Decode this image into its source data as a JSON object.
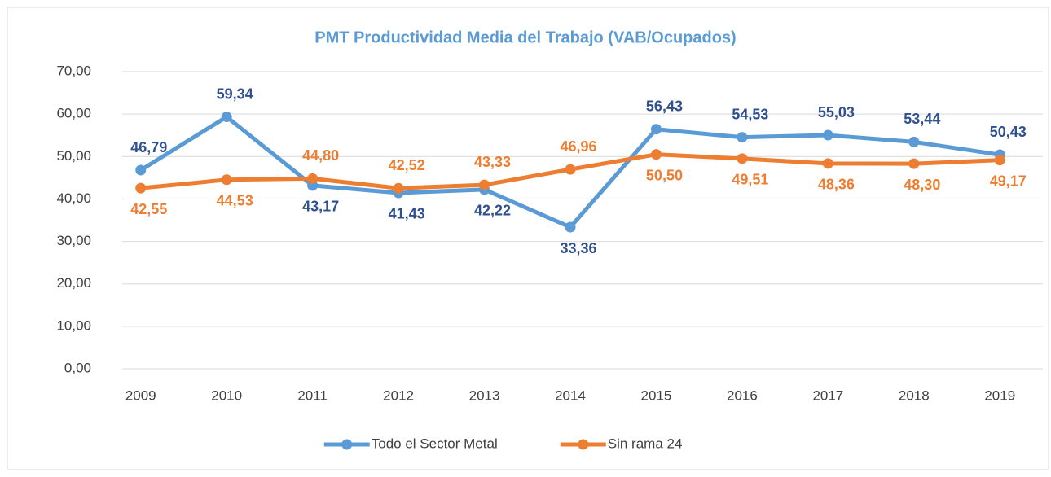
{
  "chart_data": {
    "type": "line",
    "title": "PMT Productividad Media del Trabajo (VAB/Ocupados)",
    "categories": [
      "2009",
      "2010",
      "2011",
      "2012",
      "2013",
      "2014",
      "2015",
      "2016",
      "2017",
      "2018",
      "2019"
    ],
    "series": [
      {
        "name": "Todo el Sector Metal",
        "color": "#5b9bd5",
        "label_color": "#2f4f8f",
        "values": [
          46.79,
          59.34,
          43.17,
          41.43,
          42.22,
          33.36,
          56.43,
          54.53,
          55.03,
          53.44,
          50.43
        ],
        "value_labels": [
          "46,79",
          "59,34",
          "43,17",
          "41,43",
          "42,22",
          "33,36",
          "56,43",
          "54,53",
          "55,03",
          "53,44",
          "50,43"
        ]
      },
      {
        "name": "Sin rama 24",
        "color": "#ed7d31",
        "label_color": "#ed7d31",
        "values": [
          42.55,
          44.53,
          44.8,
          42.52,
          43.33,
          46.96,
          50.5,
          49.51,
          48.36,
          48.3,
          49.17
        ],
        "value_labels": [
          "42,55",
          "44,53",
          "44,80",
          "42,52",
          "43,33",
          "46,96",
          "50,50",
          "49,51",
          "48,36",
          "48,30",
          "49,17"
        ]
      }
    ],
    "ylim": [
      0,
      70
    ],
    "yticks": [
      {
        "value": 0,
        "label": "0,00"
      },
      {
        "value": 10,
        "label": "10,00"
      },
      {
        "value": 20,
        "label": "20,00"
      },
      {
        "value": 30,
        "label": "30,00"
      },
      {
        "value": 40,
        "label": "40,00"
      },
      {
        "value": 50,
        "label": "50,00"
      },
      {
        "value": 60,
        "label": "60,00"
      },
      {
        "value": 70,
        "label": "70,00"
      }
    ],
    "grid": true,
    "legend": "bottom"
  }
}
